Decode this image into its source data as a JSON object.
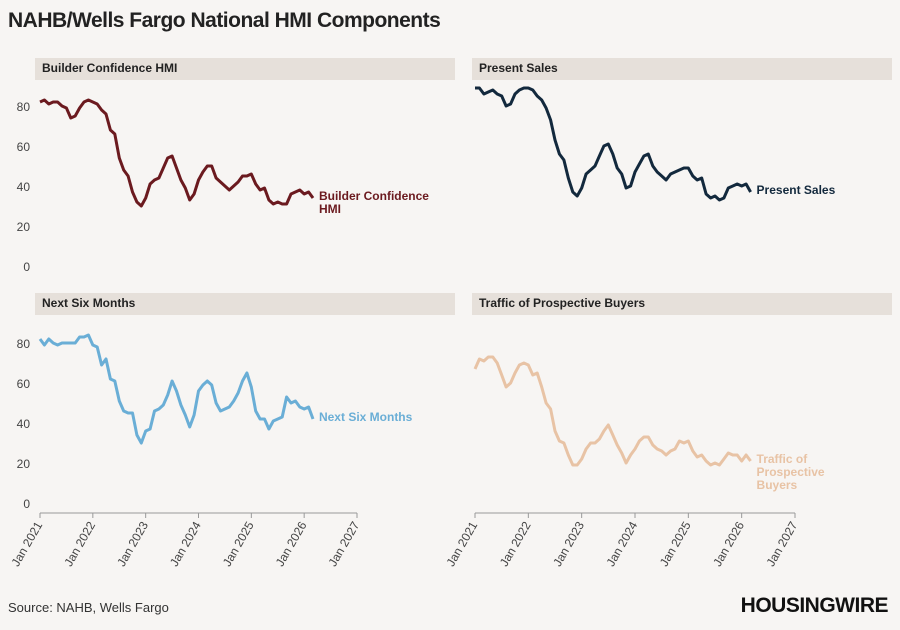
{
  "title": "NAHB/Wells Fargo National HMI Components",
  "source": "Source: NAHB, Wells Fargo",
  "brand": "HOUSINGWIRE",
  "chart_data": [
    {
      "type": "line",
      "title": "Builder Confidence HMI",
      "x": [
        "2021-01",
        "2021-02",
        "2021-03",
        "2021-04",
        "2021-05",
        "2021-06",
        "2021-07",
        "2021-08",
        "2021-09",
        "2021-10",
        "2021-11",
        "2021-12",
        "2022-01",
        "2022-02",
        "2022-03",
        "2022-04",
        "2022-05",
        "2022-06",
        "2022-07",
        "2022-08",
        "2022-09",
        "2022-10",
        "2022-11",
        "2022-12",
        "2023-01",
        "2023-02",
        "2023-03",
        "2023-04",
        "2023-05",
        "2023-06",
        "2023-07",
        "2023-08",
        "2023-09",
        "2023-10",
        "2023-11",
        "2023-12",
        "2024-01",
        "2024-02",
        "2024-03",
        "2024-04",
        "2024-05",
        "2024-06",
        "2024-07",
        "2024-08",
        "2024-09",
        "2024-10",
        "2024-11",
        "2024-12",
        "2025-01",
        "2025-02",
        "2025-03",
        "2025-04",
        "2025-05",
        "2025-06",
        "2025-07",
        "2025-08",
        "2025-09",
        "2025-10",
        "2025-11",
        "2025-12",
        "2026-01",
        "2026-02",
        "2026-03"
      ],
      "series": [
        {
          "name": "Builder Confidence HMI",
          "color": "#6b1a1f",
          "values": [
            83,
            84,
            82,
            83,
            83,
            81,
            80,
            75,
            76,
            80,
            83,
            84,
            83,
            82,
            79,
            77,
            69,
            67,
            55,
            49,
            46,
            38,
            33,
            31,
            35,
            42,
            44,
            45,
            50,
            55,
            56,
            50,
            44,
            40,
            34,
            37,
            44,
            48,
            51,
            51,
            45,
            43,
            41,
            39,
            41,
            43,
            46,
            46,
            47,
            42,
            39,
            40,
            34,
            32,
            33,
            32,
            32,
            37,
            38,
            39,
            37,
            38,
            35
          ]
        }
      ],
      "xlim": [
        "2021-01",
        "2027-01"
      ],
      "ylim": [
        0,
        90
      ],
      "yticks": [
        0,
        20,
        40,
        60,
        80
      ]
    },
    {
      "type": "line",
      "title": "Present Sales",
      "x": [
        "2021-01",
        "2021-02",
        "2021-03",
        "2021-04",
        "2021-05",
        "2021-06",
        "2021-07",
        "2021-08",
        "2021-09",
        "2021-10",
        "2021-11",
        "2021-12",
        "2022-01",
        "2022-02",
        "2022-03",
        "2022-04",
        "2022-05",
        "2022-06",
        "2022-07",
        "2022-08",
        "2022-09",
        "2022-10",
        "2022-11",
        "2022-12",
        "2023-01",
        "2023-02",
        "2023-03",
        "2023-04",
        "2023-05",
        "2023-06",
        "2023-07",
        "2023-08",
        "2023-09",
        "2023-10",
        "2023-11",
        "2023-12",
        "2024-01",
        "2024-02",
        "2024-03",
        "2024-04",
        "2024-05",
        "2024-06",
        "2024-07",
        "2024-08",
        "2024-09",
        "2024-10",
        "2024-11",
        "2024-12",
        "2025-01",
        "2025-02",
        "2025-03",
        "2025-04",
        "2025-05",
        "2025-06",
        "2025-07",
        "2025-08",
        "2025-09",
        "2025-10",
        "2025-11",
        "2025-12",
        "2026-01",
        "2026-02",
        "2026-03"
      ],
      "series": [
        {
          "name": "Present Sales",
          "color": "#13293d",
          "values": [
            90,
            90,
            87,
            88,
            89,
            87,
            86,
            81,
            82,
            87,
            89,
            90,
            90,
            89,
            86,
            84,
            80,
            74,
            64,
            57,
            54,
            45,
            38,
            36,
            40,
            47,
            49,
            51,
            56,
            61,
            62,
            57,
            50,
            47,
            40,
            41,
            48,
            52,
            56,
            57,
            51,
            48,
            46,
            44,
            47,
            48,
            49,
            50,
            50,
            46,
            44,
            45,
            37,
            35,
            36,
            34,
            35,
            40,
            41,
            42,
            41,
            42,
            38
          ]
        }
      ],
      "xlim": [
        "2021-01",
        "2027-01"
      ],
      "ylim": [
        0,
        90
      ]
    },
    {
      "type": "line",
      "title": "Next Six Months",
      "x": [
        "2021-01",
        "2021-02",
        "2021-03",
        "2021-04",
        "2021-05",
        "2021-06",
        "2021-07",
        "2021-08",
        "2021-09",
        "2021-10",
        "2021-11",
        "2021-12",
        "2022-01",
        "2022-02",
        "2022-03",
        "2022-04",
        "2022-05",
        "2022-06",
        "2022-07",
        "2022-08",
        "2022-09",
        "2022-10",
        "2022-11",
        "2022-12",
        "2023-01",
        "2023-02",
        "2023-03",
        "2023-04",
        "2023-05",
        "2023-06",
        "2023-07",
        "2023-08",
        "2023-09",
        "2023-10",
        "2023-11",
        "2023-12",
        "2024-01",
        "2024-02",
        "2024-03",
        "2024-04",
        "2024-05",
        "2024-06",
        "2024-07",
        "2024-08",
        "2024-09",
        "2024-10",
        "2024-11",
        "2024-12",
        "2025-01",
        "2025-02",
        "2025-03",
        "2025-04",
        "2025-05",
        "2025-06",
        "2025-07",
        "2025-08",
        "2025-09",
        "2025-10",
        "2025-11",
        "2025-12",
        "2026-01",
        "2026-02",
        "2026-03"
      ],
      "series": [
        {
          "name": "Next Six Months",
          "color": "#6aaed6",
          "values": [
            83,
            80,
            83,
            81,
            80,
            81,
            81,
            81,
            81,
            84,
            84,
            85,
            80,
            79,
            70,
            73,
            63,
            62,
            52,
            47,
            46,
            46,
            35,
            31,
            37,
            38,
            47,
            48,
            50,
            55,
            62,
            57,
            50,
            45,
            39,
            45,
            57,
            60,
            62,
            60,
            51,
            47,
            48,
            49,
            52,
            56,
            62,
            66,
            59,
            47,
            43,
            43,
            38,
            42,
            43,
            44,
            54,
            51,
            52,
            49,
            48,
            49,
            43
          ]
        }
      ],
      "xlim": [
        "2021-01",
        "2027-01"
      ],
      "ylim": [
        0,
        90
      ],
      "yticks": [
        0,
        20,
        40,
        60,
        80
      ],
      "xticks": [
        "Jan 2021",
        "Jan 2022",
        "Jan 2023",
        "Jan 2024",
        "Jan 2025",
        "Jan 2026",
        "Jan 2027"
      ]
    },
    {
      "type": "line",
      "title": "Traffic of Prospective Buyers",
      "x": [
        "2021-01",
        "2021-02",
        "2021-03",
        "2021-04",
        "2021-05",
        "2021-06",
        "2021-07",
        "2021-08",
        "2021-09",
        "2021-10",
        "2021-11",
        "2021-12",
        "2022-01",
        "2022-02",
        "2022-03",
        "2022-04",
        "2022-05",
        "2022-06",
        "2022-07",
        "2022-08",
        "2022-09",
        "2022-10",
        "2022-11",
        "2022-12",
        "2023-01",
        "2023-02",
        "2023-03",
        "2023-04",
        "2023-05",
        "2023-06",
        "2023-07",
        "2023-08",
        "2023-09",
        "2023-10",
        "2023-11",
        "2023-12",
        "2024-01",
        "2024-02",
        "2024-03",
        "2024-04",
        "2024-05",
        "2024-06",
        "2024-07",
        "2024-08",
        "2024-09",
        "2024-10",
        "2024-11",
        "2024-12",
        "2025-01",
        "2025-02",
        "2025-03",
        "2025-04",
        "2025-05",
        "2025-06",
        "2025-07",
        "2025-08",
        "2025-09",
        "2025-10",
        "2025-11",
        "2025-12",
        "2026-01",
        "2026-02",
        "2026-03"
      ],
      "series": [
        {
          "name": "Traffic of Prospective Buyers",
          "color": "#e8c3a5",
          "values": [
            68,
            73,
            72,
            74,
            74,
            71,
            65,
            59,
            61,
            66,
            70,
            71,
            70,
            65,
            66,
            59,
            51,
            48,
            37,
            32,
            31,
            25,
            20,
            20,
            23,
            28,
            31,
            31,
            33,
            37,
            40,
            35,
            30,
            26,
            21,
            25,
            28,
            32,
            34,
            34,
            30,
            28,
            27,
            25,
            27,
            28,
            32,
            31,
            32,
            27,
            24,
            25,
            22,
            20,
            21,
            20,
            23,
            26,
            25,
            25,
            22,
            25,
            22
          ]
        }
      ],
      "xlim": [
        "2021-01",
        "2027-01"
      ],
      "ylim": [
        0,
        90
      ],
      "xticks": [
        "Jan 2021",
        "Jan 2022",
        "Jan 2023",
        "Jan 2024",
        "Jan 2025",
        "Jan 2026",
        "Jan 2027"
      ]
    }
  ]
}
